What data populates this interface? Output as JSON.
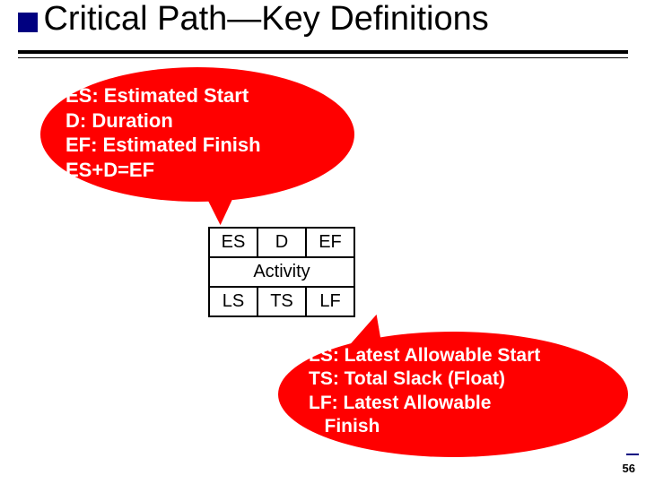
{
  "title": "Critical Path—Key Definitions",
  "bubble_top": {
    "bg": "#ff0000",
    "lines": [
      "ES: Estimated Start",
      "D: Duration",
      "EF: Estimated Finish",
      "ES+D=EF"
    ]
  },
  "activity_table": {
    "row1": [
      "ES",
      "D",
      "EF"
    ],
    "row2": "Activity",
    "row3": [
      "LS",
      "TS",
      "LF"
    ]
  },
  "bubble_bottom": {
    "bg": "#ff0000",
    "lines": [
      "LS: Latest Allowable Start",
      "TS: Total Slack (Float)",
      "LF: Latest Allowable",
      "   Finish"
    ]
  },
  "page_number": "56"
}
